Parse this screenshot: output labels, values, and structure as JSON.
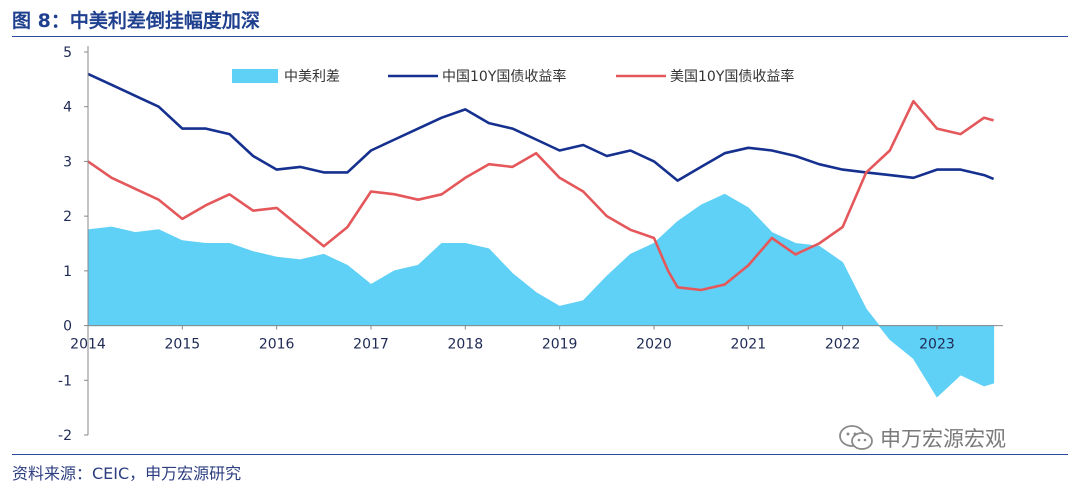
{
  "header": {
    "title": "图 8：中美利差倒挂幅度加深",
    "source": "资料来源：CEIC，申万宏源研究",
    "watermark": "申万宏源宏观"
  },
  "colors": {
    "spread": "#5fd0f6",
    "china": "#15308f",
    "us": "#e4585b",
    "axis": "#888888",
    "title": "#1f3f8f"
  },
  "chart_data": {
    "type": "area+line",
    "title": "中美利差倒挂幅度加深",
    "xlabel": "",
    "ylabel": "",
    "xlim": [
      2014.0,
      2023.7
    ],
    "ylim": [
      -2,
      5
    ],
    "y_ticks": [
      "5",
      "4",
      "3",
      "2",
      "1",
      "0",
      "-1",
      "-2"
    ],
    "x_ticks": [
      "2014",
      "2015",
      "2016",
      "2017",
      "2018",
      "2019",
      "2020",
      "2021",
      "2022",
      "2023"
    ],
    "legend_position": "top-center",
    "grid": false,
    "series": [
      {
        "name": "中美利差",
        "kind": "area",
        "x": [
          2014.0,
          2014.25,
          2014.5,
          2014.75,
          2015.0,
          2015.25,
          2015.5,
          2015.75,
          2016.0,
          2016.25,
          2016.5,
          2016.75,
          2017.0,
          2017.25,
          2017.5,
          2017.75,
          2018.0,
          2018.25,
          2018.5,
          2018.75,
          2019.0,
          2019.25,
          2019.5,
          2019.75,
          2020.0,
          2020.25,
          2020.5,
          2020.75,
          2021.0,
          2021.25,
          2021.5,
          2021.75,
          2022.0,
          2022.25,
          2022.5,
          2022.75,
          2023.0,
          2023.25,
          2023.5,
          2023.6
        ],
        "values": [
          1.75,
          1.8,
          1.7,
          1.75,
          1.55,
          1.5,
          1.5,
          1.35,
          1.25,
          1.2,
          1.3,
          1.1,
          0.75,
          1.0,
          1.1,
          1.5,
          1.5,
          1.4,
          0.95,
          0.6,
          0.35,
          0.45,
          0.9,
          1.3,
          1.5,
          1.9,
          2.2,
          2.4,
          2.15,
          1.7,
          1.5,
          1.45,
          1.15,
          0.3,
          -0.25,
          -0.6,
          -1.3,
          -0.9,
          -1.1,
          -1.05
        ]
      },
      {
        "name": "中国10Y国债收益率",
        "kind": "line",
        "x": [
          2014.0,
          2014.25,
          2014.5,
          2014.75,
          2015.0,
          2015.25,
          2015.5,
          2015.75,
          2016.0,
          2016.25,
          2016.5,
          2016.75,
          2017.0,
          2017.25,
          2017.5,
          2017.75,
          2018.0,
          2018.25,
          2018.5,
          2018.75,
          2019.0,
          2019.25,
          2019.5,
          2019.75,
          2020.0,
          2020.25,
          2020.5,
          2020.75,
          2021.0,
          2021.25,
          2021.5,
          2021.75,
          2022.0,
          2022.25,
          2022.5,
          2022.75,
          2023.0,
          2023.25,
          2023.5,
          2023.6
        ],
        "values": [
          4.6,
          4.4,
          4.2,
          4.0,
          3.6,
          3.6,
          3.5,
          3.1,
          2.85,
          2.9,
          2.8,
          2.8,
          3.2,
          3.4,
          3.6,
          3.8,
          3.95,
          3.7,
          3.6,
          3.4,
          3.2,
          3.3,
          3.1,
          3.2,
          3.0,
          2.65,
          2.9,
          3.15,
          3.25,
          3.2,
          3.1,
          2.95,
          2.85,
          2.8,
          2.75,
          2.7,
          2.85,
          2.85,
          2.75,
          2.68
        ]
      },
      {
        "name": "美国10Y国债收益率",
        "kind": "line",
        "x": [
          2014.0,
          2014.25,
          2014.5,
          2014.75,
          2015.0,
          2015.25,
          2015.5,
          2015.75,
          2016.0,
          2016.25,
          2016.5,
          2016.75,
          2017.0,
          2017.25,
          2017.5,
          2017.75,
          2018.0,
          2018.25,
          2018.5,
          2018.75,
          2019.0,
          2019.25,
          2019.5,
          2019.75,
          2020.0,
          2020.15,
          2020.25,
          2020.5,
          2020.75,
          2021.0,
          2021.25,
          2021.5,
          2021.75,
          2022.0,
          2022.25,
          2022.5,
          2022.75,
          2023.0,
          2023.25,
          2023.5,
          2023.6
        ],
        "values": [
          3.0,
          2.7,
          2.5,
          2.3,
          1.95,
          2.2,
          2.4,
          2.1,
          2.15,
          1.8,
          1.45,
          1.8,
          2.45,
          2.4,
          2.3,
          2.4,
          2.7,
          2.95,
          2.9,
          3.15,
          2.7,
          2.45,
          2.0,
          1.75,
          1.6,
          1.0,
          0.7,
          0.65,
          0.75,
          1.1,
          1.6,
          1.3,
          1.5,
          1.8,
          2.8,
          3.2,
          4.1,
          3.6,
          3.5,
          3.8,
          3.75
        ]
      }
    ]
  }
}
